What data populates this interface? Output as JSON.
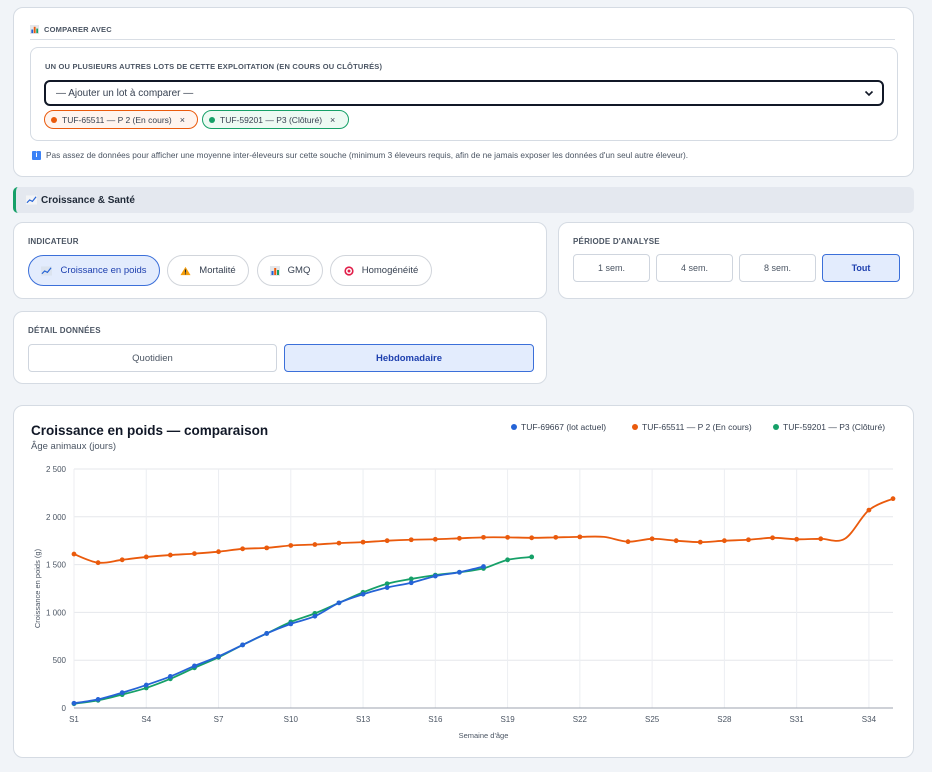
{
  "compare": {
    "section_label": "COMPARER AVEC",
    "group_label": "UN OU PLUSIEURS AUTRES LOTS DE CETTE EXPLOITATION (EN COURS OU CLÔTURÉS)",
    "select_value": "— Ajouter un lot à comparer —",
    "chips": [
      {
        "label": "TUF-65511 — P 2 (En cours)",
        "color": "#ea5a0c"
      },
      {
        "label": "TUF-59201 — P3 (Clôturé)",
        "color": "#16a068"
      }
    ],
    "remove_glyph": "×",
    "info_text": "Pas assez de données pour afficher une moyenne inter-éleveurs sur cette souche (minimum 3 éleveurs requis, afin de ne jamais exposer les données d'un seul autre éleveur)."
  },
  "section_header": {
    "title": "Croissance & Santé"
  },
  "indicator": {
    "label": "INDICATEUR",
    "options": [
      {
        "label": "Croissance en poids",
        "icon": "chart-up-icon",
        "active": true
      },
      {
        "label": "Mortalité",
        "icon": "warning-icon",
        "active": false
      },
      {
        "label": "GMQ",
        "icon": "bar-chart-icon",
        "active": false
      },
      {
        "label": "Homogénéité",
        "icon": "target-icon",
        "active": false
      }
    ]
  },
  "period": {
    "label": "PÉRIODE D'ANALYSE",
    "options": [
      {
        "label": "1 sem.",
        "active": false
      },
      {
        "label": "4 sem.",
        "active": false
      },
      {
        "label": "8 sem.",
        "active": false
      },
      {
        "label": "Tout",
        "active": true
      }
    ]
  },
  "detail": {
    "label": "DÉTAIL DONNÉES",
    "options": [
      {
        "label": "Quotidien",
        "active": false
      },
      {
        "label": "Hebdomadaire",
        "active": true
      }
    ]
  },
  "chart_data": {
    "type": "line",
    "title": "Croissance en poids — comparaison",
    "subtitle": "Âge animaux (jours)",
    "xlabel": "Semaine d'âge",
    "ylabel": "Croissance en poids (g)",
    "ylim": [
      0,
      2500
    ],
    "yticks": [
      "0",
      "500",
      "1 000",
      "1 500",
      "2 000",
      "2 500"
    ],
    "ytick_values": [
      0,
      500,
      1000,
      1500,
      2000,
      2500
    ],
    "xticks": [
      "S1",
      "S4",
      "S7",
      "S10",
      "S13",
      "S16",
      "S19",
      "S22",
      "S25",
      "S28",
      "S31",
      "S34"
    ],
    "xtick_values": [
      1,
      4,
      7,
      10,
      13,
      16,
      19,
      22,
      25,
      28,
      31,
      34
    ],
    "xlim": [
      1,
      35
    ],
    "grid": true,
    "legend_position": "top-right",
    "series": [
      {
        "name": "TUF-69667 (lot actuel)",
        "color": "#2563d6",
        "x": [
          1,
          2,
          3,
          4,
          5,
          6,
          7,
          8,
          9,
          10,
          11,
          12,
          13,
          14,
          15,
          16,
          17,
          18
        ],
        "y": [
          50,
          90,
          160,
          240,
          330,
          440,
          540,
          660,
          780,
          880,
          960,
          1100,
          1190,
          1260,
          1310,
          1380,
          1420,
          1480
        ]
      },
      {
        "name": "TUF-65511 — P 2 (En cours)",
        "color": "#ea5a0c",
        "x": [
          1,
          2,
          3,
          4,
          5,
          6,
          7,
          8,
          9,
          10,
          11,
          12,
          13,
          14,
          15,
          16,
          17,
          18,
          19,
          20,
          21,
          22,
          23,
          24,
          25,
          26,
          27,
          28,
          29,
          30,
          31,
          32,
          33,
          34,
          35
        ],
        "y": [
          1610,
          1520,
          1550,
          1580,
          1600,
          1615,
          1635,
          1665,
          1675,
          1700,
          1710,
          1725,
          1735,
          1750,
          1760,
          1765,
          1775,
          1785,
          1785,
          1780,
          1785,
          1790,
          1790,
          1740,
          1770,
          1750,
          1735,
          1750,
          1760,
          1780,
          1765,
          1770,
          1770,
          2070,
          2190
        ],
        "marker_x": [
          1,
          2,
          3,
          4,
          5,
          6,
          7,
          8,
          9,
          10,
          11,
          12,
          13,
          14,
          15,
          16,
          17,
          18,
          19,
          20,
          21,
          22,
          24,
          25,
          26,
          27,
          28,
          29,
          30,
          31,
          32,
          34,
          35
        ]
      },
      {
        "name": "TUF-59201 — P3 (Clôturé)",
        "color": "#16a068",
        "x": [
          1,
          2,
          3,
          4,
          5,
          6,
          7,
          8,
          9,
          10,
          11,
          12,
          13,
          14,
          15,
          16,
          17,
          18,
          19,
          20
        ],
        "y": [
          45,
          80,
          140,
          210,
          305,
          420,
          530,
          660,
          780,
          900,
          990,
          1100,
          1210,
          1300,
          1350,
          1390,
          1420,
          1460,
          1550,
          1580
        ]
      }
    ]
  }
}
